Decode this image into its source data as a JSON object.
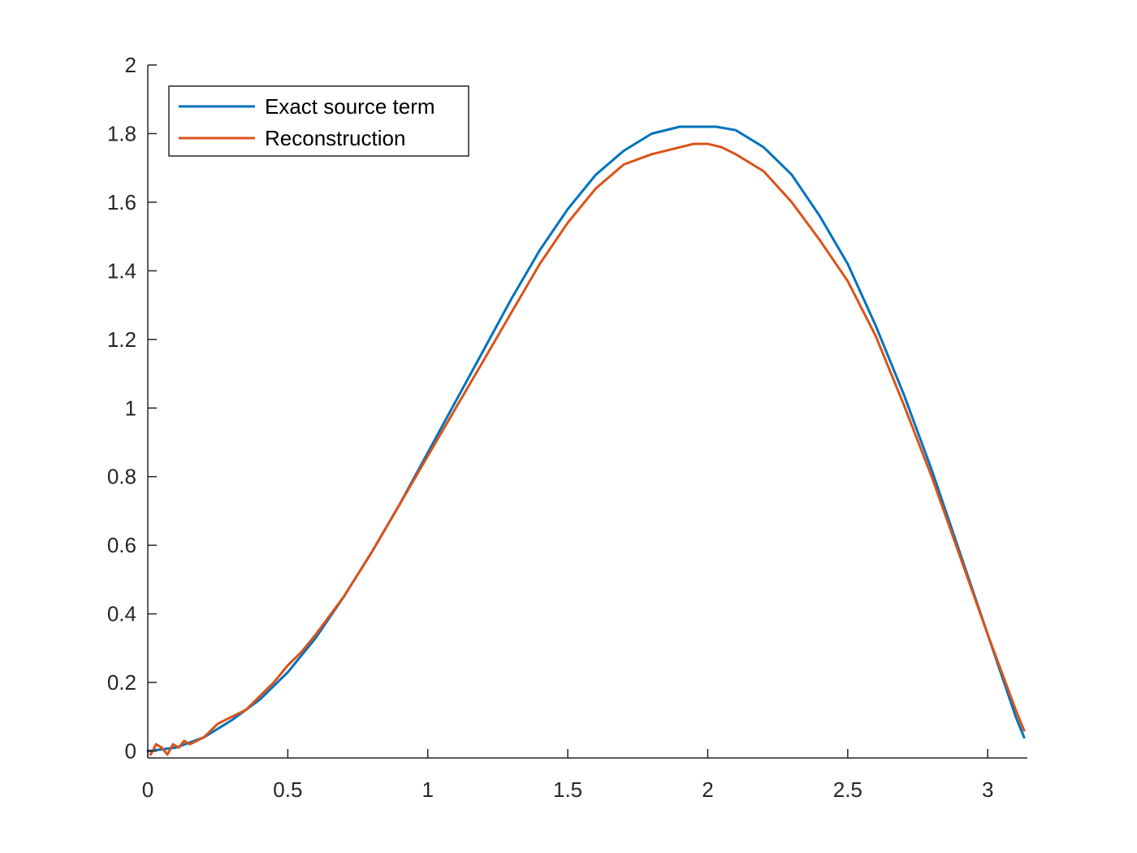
{
  "chart_data": {
    "type": "line",
    "title": "",
    "xlabel": "",
    "ylabel": "",
    "xlim": [
      0,
      3.1416
    ],
    "ylim": [
      -0.02,
      2
    ],
    "xticks": [
      0,
      0.5,
      1,
      1.5,
      2,
      2.5,
      3
    ],
    "xtick_labels": [
      "0",
      "0.5",
      "1",
      "1.5",
      "2",
      "2.5",
      "3"
    ],
    "yticks": [
      0,
      0.2,
      0.4,
      0.6,
      0.8,
      1,
      1.2,
      1.4,
      1.6,
      1.8,
      2
    ],
    "ytick_labels": [
      "0",
      "0.2",
      "0.4",
      "0.6",
      "0.8",
      "1",
      "1.2",
      "1.4",
      "1.6",
      "1.8",
      "2"
    ],
    "grid": false,
    "legend_position": "top-left",
    "series": [
      {
        "name": "Exact source term",
        "color": "#0072BD",
        "x": [
          0,
          0.1,
          0.2,
          0.3,
          0.4,
          0.5,
          0.6,
          0.7,
          0.8,
          0.9,
          1.0,
          1.1,
          1.2,
          1.3,
          1.4,
          1.5,
          1.6,
          1.7,
          1.8,
          1.9,
          2.0,
          2.03,
          2.1,
          2.2,
          2.3,
          2.4,
          2.5,
          2.6,
          2.7,
          2.8,
          2.9,
          3.0,
          3.1,
          3.13
        ],
        "y": [
          0,
          0.01,
          0.04,
          0.09,
          0.15,
          0.23,
          0.33,
          0.45,
          0.58,
          0.72,
          0.87,
          1.02,
          1.17,
          1.32,
          1.46,
          1.58,
          1.68,
          1.75,
          1.8,
          1.82,
          1.82,
          1.82,
          1.81,
          1.76,
          1.68,
          1.56,
          1.42,
          1.24,
          1.04,
          0.82,
          0.58,
          0.34,
          0.1,
          0.04
        ]
      },
      {
        "name": "Reconstruction",
        "color": "#D95319",
        "x": [
          0.01,
          0.03,
          0.05,
          0.07,
          0.09,
          0.11,
          0.13,
          0.15,
          0.2,
          0.25,
          0.3,
          0.35,
          0.4,
          0.45,
          0.5,
          0.55,
          0.6,
          0.7,
          0.8,
          0.9,
          1.0,
          1.1,
          1.2,
          1.3,
          1.4,
          1.5,
          1.6,
          1.7,
          1.8,
          1.9,
          1.95,
          2.0,
          2.05,
          2.1,
          2.2,
          2.3,
          2.4,
          2.5,
          2.6,
          2.7,
          2.8,
          2.9,
          3.0,
          3.1,
          3.13
        ],
        "y": [
          -0.01,
          0.02,
          0.01,
          -0.01,
          0.02,
          0.01,
          0.03,
          0.02,
          0.04,
          0.08,
          0.1,
          0.12,
          0.16,
          0.2,
          0.25,
          0.29,
          0.34,
          0.45,
          0.58,
          0.72,
          0.86,
          1.0,
          1.14,
          1.28,
          1.42,
          1.54,
          1.64,
          1.71,
          1.74,
          1.76,
          1.77,
          1.77,
          1.76,
          1.74,
          1.69,
          1.6,
          1.49,
          1.37,
          1.21,
          1.01,
          0.8,
          0.57,
          0.34,
          0.12,
          0.06
        ]
      }
    ]
  }
}
